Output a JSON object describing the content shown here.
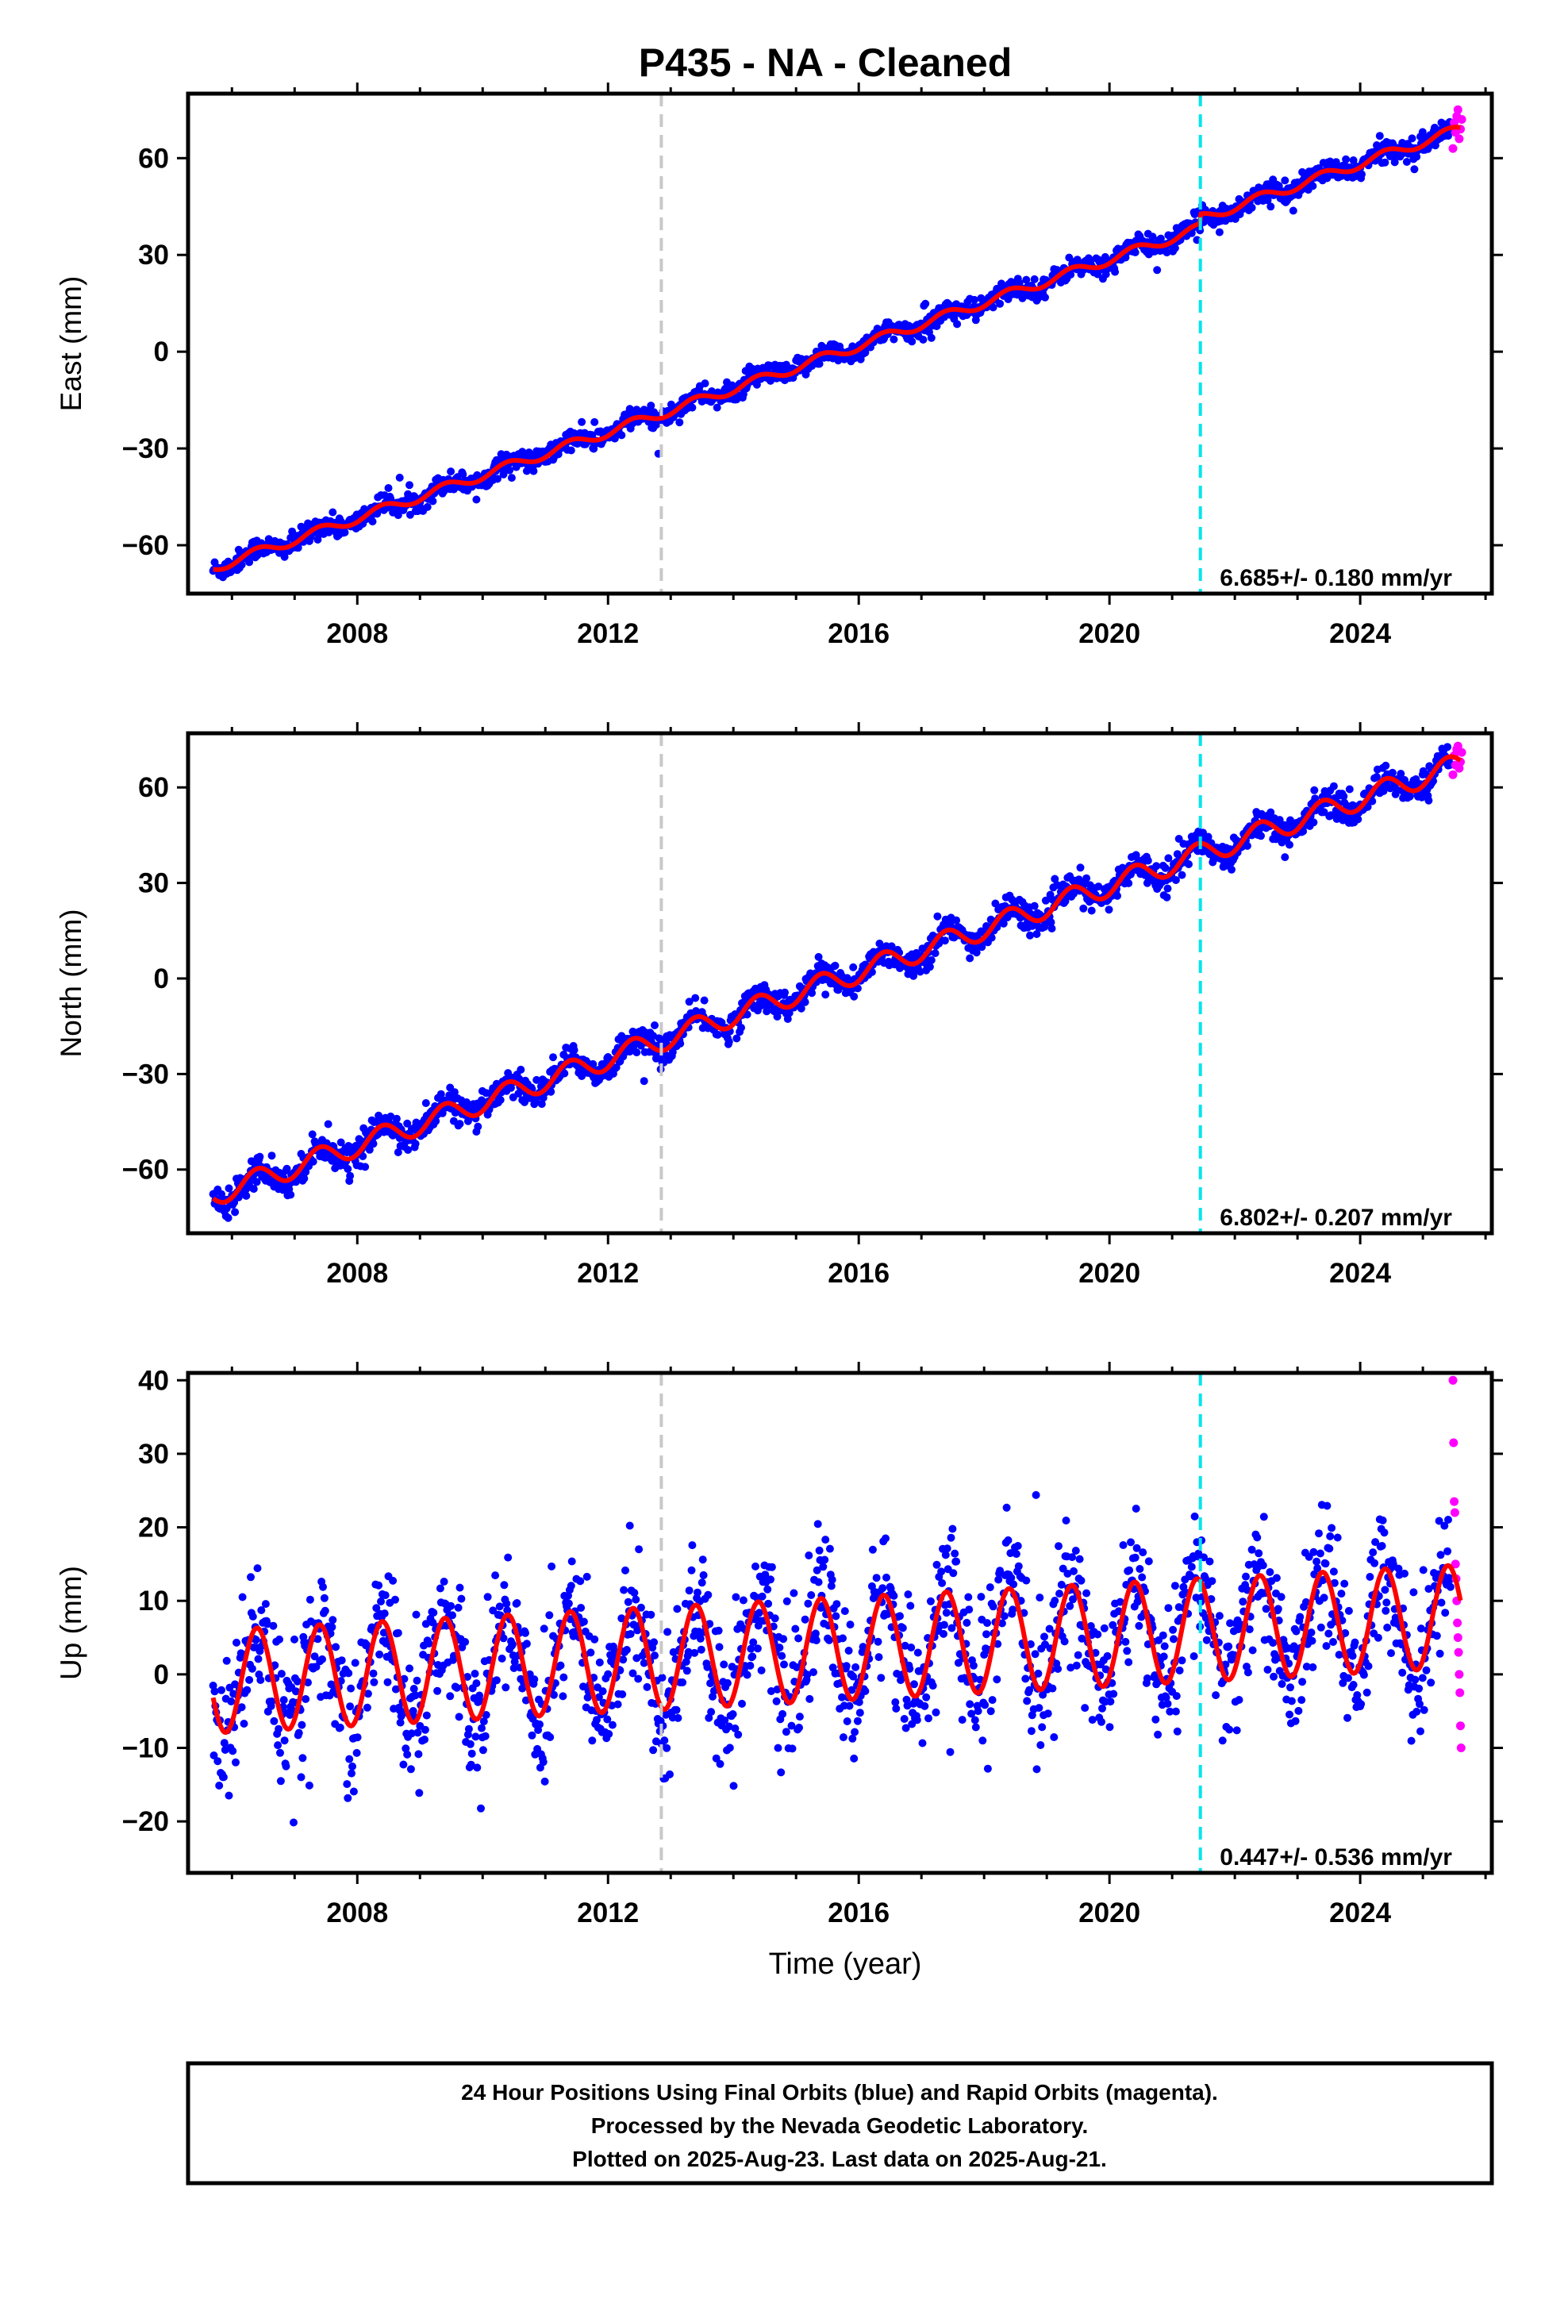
{
  "chart_data": {
    "title": "P435  - NA - Cleaned",
    "xlabel": "Time (year)",
    "xlim": [
      2005.3,
      2026.1
    ],
    "x_ticks": [
      "2008",
      "2012",
      "2016",
      "2020",
      "2024"
    ],
    "grid": false,
    "reference_lines": [
      {
        "x": 2012.85,
        "color": "#c8c8c8",
        "style": "dashed"
      },
      {
        "x": 2021.45,
        "color": "#00e5ee",
        "style": "dashed"
      }
    ],
    "colors": {
      "final": "#0000ff",
      "rapid": "#ff00ff",
      "model": "#ff0000"
    },
    "panels": [
      {
        "type": "scatter",
        "ylabel": "East (mm)",
        "ylim": [
          -75,
          80
        ],
        "y_ticks": [
          "60",
          "30",
          "0",
          "−30",
          "−60"
        ],
        "rate": "6.685+/- 0.180 mm/yr",
        "model": {
          "start_year": 2005.7,
          "end_year": 2025.6,
          "intercept": -67,
          "slope": 6.685,
          "annual_amplitude": 1.5,
          "steps": [
            {
              "x": 2021.45,
              "size": 3
            }
          ]
        },
        "final_orbit_points": {
          "x_range": [
            2005.7,
            2025.45
          ],
          "noise_sd": 1.6
        },
        "rapid_orbit_points": {
          "x": [
            2025.48,
            2025.5,
            2025.52,
            2025.54,
            2025.56,
            2025.58,
            2025.6,
            2025.62
          ],
          "y": [
            63,
            71,
            68,
            73,
            75,
            66,
            69,
            72
          ]
        }
      },
      {
        "type": "scatter",
        "ylabel": "North (mm)",
        "ylim": [
          -80,
          77
        ],
        "y_ticks": [
          "60",
          "30",
          "0",
          "−30",
          "−60"
        ],
        "rate": "6.802+/- 0.207 mm/yr",
        "model": {
          "start_year": 2005.7,
          "end_year": 2025.6,
          "intercept": -68,
          "slope": 6.802,
          "annual_amplitude": 3.5
        },
        "final_orbit_points": {
          "x_range": [
            2005.7,
            2025.45
          ],
          "noise_sd": 2.2
        },
        "rapid_orbit_points": {
          "x": [
            2025.48,
            2025.5,
            2025.52,
            2025.54,
            2025.56,
            2025.58,
            2025.6,
            2025.62
          ],
          "y": [
            64,
            70,
            67,
            72,
            73,
            66,
            68,
            71
          ]
        }
      },
      {
        "type": "scatter",
        "ylabel": "Up (mm)",
        "ylim": [
          -27,
          41
        ],
        "y_ticks": [
          "40",
          "30",
          "20",
          "10",
          "0",
          "−10",
          "−20"
        ],
        "rate": "0.447+/- 0.536 mm/yr",
        "model": {
          "start_year": 2005.7,
          "end_year": 2025.6,
          "intercept": -1,
          "slope": 0.447,
          "annual_amplitude": 7.0
        },
        "final_orbit_points": {
          "x_range": [
            2005.7,
            2025.45
          ],
          "noise_sd": 4.5
        },
        "rapid_orbit_points": {
          "x": [
            2025.48,
            2025.49,
            2025.5,
            2025.51,
            2025.52,
            2025.53,
            2025.54,
            2025.55,
            2025.56,
            2025.57,
            2025.58,
            2025.59,
            2025.6,
            2025.61
          ],
          "y": [
            40,
            31.5,
            23.5,
            22,
            15,
            13,
            10,
            7,
            5,
            3,
            0,
            -2.5,
            -7,
            -10
          ]
        }
      }
    ]
  },
  "caption": {
    "line1": "24 Hour Positions Using Final Orbits (blue) and Rapid Orbits (magenta).",
    "line2": "Processed by the Nevada Geodetic Laboratory.",
    "line3": "Plotted on 2025-Aug-23. Last data on 2025-Aug-21."
  }
}
